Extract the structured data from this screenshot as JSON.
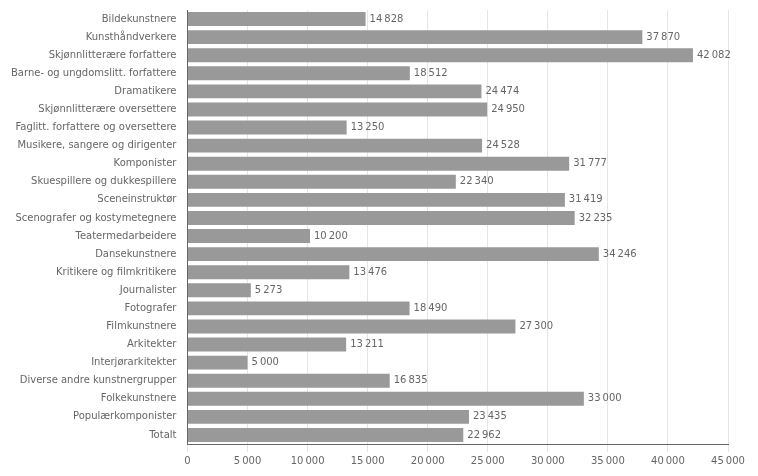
{
  "chart_data": {
    "type": "bar",
    "orientation": "horizontal",
    "categories": [
      "Bildekunstnere",
      "Kunsthåndverkere",
      "Skjønnlitterære forfattere",
      "Barne- og ungdomslitt. forfattere",
      "Dramatikere",
      "Skjønnlitterære oversettere",
      "Faglitt. forfattere og oversettere",
      "Musikere, sangere og dirigenter",
      "Komponister",
      "Skuespillere og dukkespillere",
      "Sceneinstruktør",
      "Scenografer og kostymetegnere",
      "Teatermedarbeidere",
      "Dansekunstnere",
      "Kritikere og filmkritikere",
      "Journalister",
      "Fotografer",
      "Filmkunstnere",
      "Arkitekter",
      "Interjørarkitekter",
      "Diverse andre kunstnergrupper",
      "Folkekunstnere",
      "Populærkomponister",
      "Totalt"
    ],
    "values": [
      14828,
      37870,
      42082,
      18512,
      24474,
      24950,
      13250,
      24528,
      31777,
      22340,
      31419,
      32235,
      10200,
      34246,
      13476,
      5273,
      18490,
      27300,
      13211,
      5000,
      16835,
      33000,
      23435,
      22962
    ],
    "value_labels": [
      "14 828",
      "37 870",
      "42 082",
      "18 512",
      "24 474",
      "24 950",
      "13 250",
      "24 528",
      "31 777",
      "22 340",
      "31 419",
      "32 235",
      "10 200",
      "34 246",
      "13 476",
      "5 273",
      "18 490",
      "27 300",
      "13 211",
      "5 000",
      "16 835",
      "33 000",
      "23 435",
      "22 962"
    ],
    "data_labels": true,
    "color": "#999999",
    "xlim": [
      0,
      45000
    ],
    "xticks": [
      0,
      {
        "value": 5000,
        "label": "5 000"
      },
      {
        "value": 10000,
        "label": "10 000"
      },
      {
        "value": 15000,
        "label": "15 000"
      },
      {
        "value": 20000,
        "label": "20 000"
      },
      {
        "value": 25000,
        "label": "25 000"
      },
      {
        "value": 30000,
        "label": "30 000"
      },
      {
        "value": 35000,
        "label": "35 000"
      },
      {
        "value": 40000,
        "label": "40 000"
      },
      {
        "value": 45000,
        "label": "45 000"
      }
    ],
    "grid": true
  }
}
